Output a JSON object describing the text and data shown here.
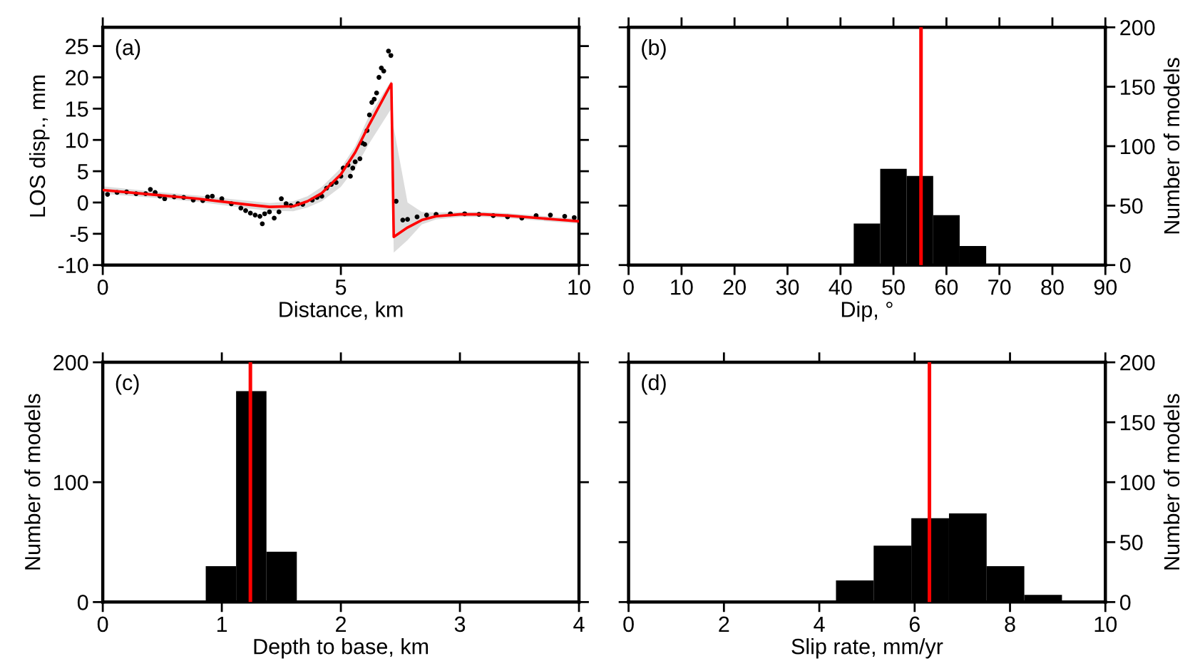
{
  "chart_data": [
    {
      "type": "scatter",
      "xlabel": "Distance, km",
      "ylabel": "LOS disp., mm",
      "annotations": [
        "(a)"
      ],
      "xlim": [
        0,
        10
      ],
      "xticks": [
        0,
        5,
        10
      ],
      "ylim": [
        -10,
        28
      ],
      "yticks": [
        -10,
        -5,
        0,
        5,
        10,
        15,
        20,
        25
      ],
      "grid": false,
      "legend": false,
      "series": [
        {
          "type": "scatter",
          "color": "#000000",
          "marker": "circle",
          "x": [
            0.1,
            0.3,
            0.5,
            0.7,
            0.9,
            1.0,
            1.1,
            1.2,
            1.3,
            1.5,
            1.7,
            1.9,
            2.1,
            2.2,
            2.3,
            2.5,
            2.7,
            2.9,
            3.0,
            3.1,
            3.2,
            3.3,
            3.35,
            3.4,
            3.5,
            3.6,
            3.7,
            3.75,
            3.85,
            3.95,
            4.1,
            4.2,
            4.4,
            4.5,
            4.6,
            4.7,
            4.8,
            4.9,
            5.0,
            5.05,
            5.15,
            5.2,
            5.25,
            5.3,
            5.4,
            5.45,
            5.5,
            5.55,
            5.6,
            5.65,
            5.7,
            5.75,
            5.8,
            5.85,
            5.9,
            6.0,
            6.05,
            6.16,
            6.3,
            6.4,
            6.6,
            6.8,
            7.0,
            7.3,
            7.6,
            7.9,
            8.2,
            8.5,
            8.8,
            9.1,
            9.4,
            9.7,
            9.9
          ],
          "values": [
            1.3,
            1.6,
            1.7,
            1.4,
            1.4,
            2.1,
            1.6,
            1.0,
            0.6,
            0.9,
            0.8,
            0.4,
            0.3,
            0.9,
            1.0,
            0.6,
            -0.2,
            -0.9,
            -1.3,
            -1.7,
            -2.0,
            -2.2,
            -3.4,
            -1.8,
            -1.5,
            -2.5,
            -1.5,
            0.6,
            -0.2,
            -0.5,
            -0.2,
            -0.3,
            0.4,
            0.8,
            1.0,
            2.3,
            2.9,
            3.2,
            4.2,
            5.5,
            6.0,
            4.2,
            5.5,
            6.5,
            7.0,
            9.5,
            9.3,
            11.5,
            14.0,
            16.0,
            16.5,
            17.5,
            20.0,
            21.5,
            21.0,
            24.2,
            23.5,
            0.2,
            -2.8,
            -2.7,
            -2.3,
            -2.0,
            -1.9,
            -1.8,
            -1.8,
            -1.9,
            -2.1,
            -2.3,
            -2.5,
            -2.1,
            -2.0,
            -2.2,
            -2.4
          ]
        },
        {
          "type": "line",
          "color": "#ff0000",
          "line_style": "solid",
          "marker": "none",
          "x": [
            0,
            1,
            2,
            3,
            3.5,
            4,
            4.3,
            4.6,
            5,
            5.3,
            5.6,
            6.06,
            6.11,
            6.4,
            6.7,
            7,
            7.5,
            8,
            8.5,
            9,
            9.5,
            10
          ],
          "values": [
            2.0,
            1.3,
            0.6,
            -0.3,
            -0.7,
            -0.6,
            0.2,
            1.5,
            4.5,
            8.0,
            12.5,
            19.0,
            -5.5,
            -4.0,
            -2.8,
            -2.2,
            -1.9,
            -1.9,
            -2.1,
            -2.4,
            -2.7,
            -3.0
          ],
          "lower": [
            1.4,
            0.8,
            0.1,
            -0.9,
            -1.3,
            -1.4,
            -0.8,
            0.2,
            2.5,
            5.5,
            9.5,
            15.0,
            -8.0,
            -6.0,
            -3.5,
            -2.7,
            -2.3,
            -2.3,
            -2.5,
            -2.8,
            -3.1,
            -3.4
          ],
          "upper": [
            2.6,
            1.8,
            1.1,
            0.3,
            -0.1,
            0.2,
            1.0,
            2.5,
            5.5,
            9.0,
            14.0,
            19.5,
            12.0,
            0.0,
            -1.5,
            -1.6,
            -1.5,
            -1.5,
            -1.7,
            -2.0,
            -2.3,
            -2.6
          ]
        }
      ]
    },
    {
      "type": "histogram",
      "xlabel": "Dip, °",
      "y2label": "Number of models",
      "annotations": [
        "(b)"
      ],
      "xlim": [
        0,
        90
      ],
      "xticks": [
        0,
        10,
        20,
        30,
        40,
        50,
        60,
        70,
        80,
        90
      ],
      "y2lim": [
        0,
        200
      ],
      "y2ticks": [
        0,
        50,
        100,
        150,
        200
      ],
      "grid": false,
      "legend": false,
      "bins": [
        42.5,
        47.5,
        52.5,
        57.5,
        62.5,
        67.5
      ],
      "series": [
        {
          "color": "#000000",
          "axis": "y2",
          "values": [
            35,
            81,
            75,
            42,
            16
          ]
        }
      ],
      "ref_lines": [
        {
          "axis": "x",
          "value": 55.2,
          "color": "#ff0000"
        }
      ]
    },
    {
      "type": "histogram",
      "xlabel": "Depth to base, km",
      "ylabel": "Number of models",
      "annotations": [
        "(c)"
      ],
      "xlim": [
        0,
        4
      ],
      "xticks": [
        0,
        1,
        2,
        3,
        4
      ],
      "ylim": [
        0,
        200
      ],
      "yticks": [
        0,
        100,
        200
      ],
      "grid": false,
      "legend": false,
      "bins": [
        0.865,
        1.12,
        1.375,
        1.63
      ],
      "series": [
        {
          "color": "#000000",
          "values": [
            30,
            176,
            42
          ]
        }
      ],
      "ref_lines": [
        {
          "axis": "x",
          "value": 1.24,
          "color": "#ff0000"
        }
      ]
    },
    {
      "type": "histogram",
      "xlabel": "Slip rate, mm/yr",
      "y2label": "Number of models",
      "annotations": [
        "(d)"
      ],
      "xlim": [
        0,
        10
      ],
      "xticks": [
        0,
        2,
        4,
        6,
        8,
        10
      ],
      "y2lim": [
        0,
        200
      ],
      "y2ticks": [
        0,
        50,
        100,
        150,
        200
      ],
      "grid": false,
      "legend": false,
      "bins": [
        4.35,
        5.14,
        5.93,
        6.72,
        7.51,
        8.3,
        9.09
      ],
      "series": [
        {
          "color": "#000000",
          "axis": "y2",
          "values": [
            18,
            47,
            70,
            74,
            30,
            6
          ]
        }
      ],
      "ref_lines": [
        {
          "axis": "x",
          "value": 6.31,
          "color": "#ff0000"
        }
      ]
    }
  ]
}
